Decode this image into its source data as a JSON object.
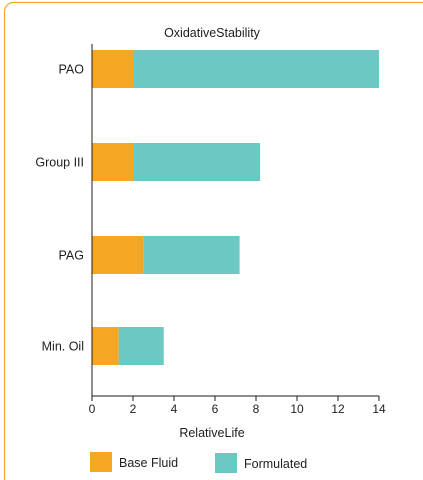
{
  "colors": {
    "frame": "#f5a623",
    "base_fluid": "#f5a623",
    "formulated": "#6cc8c2",
    "axis": "#1e1e1e"
  },
  "chart_data": {
    "type": "bar",
    "orientation": "horizontal",
    "stacked": true,
    "title": "OxidativeStability",
    "xlabel": "RelativeLife",
    "ylabel": "",
    "categories": [
      "PAO",
      "Group III",
      "PAG",
      "Min. Oil"
    ],
    "series": [
      {
        "name": "Base Fluid",
        "values": [
          2.0,
          2.0,
          2.5,
          1.3
        ],
        "color": "#f5a623"
      },
      {
        "name": "Formulated",
        "values": [
          12.0,
          6.2,
          4.7,
          2.2
        ],
        "color": "#6cc8c2"
      }
    ],
    "xlim": [
      0,
      14
    ],
    "xticks": [
      0,
      2,
      4,
      6,
      8,
      10,
      12,
      14
    ],
    "grid": false,
    "legend": "bottom"
  }
}
